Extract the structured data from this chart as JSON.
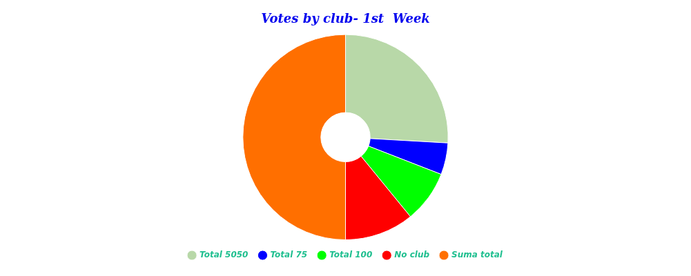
{
  "chart_data": {
    "type": "donut",
    "title": "Votes by club- 1st  Week",
    "categories": [
      "Total 5050",
      "Total 75",
      "Total 100",
      "No club",
      "Suma total"
    ],
    "values": [
      25.9,
      5.0,
      8.2,
      10.9,
      50.0
    ],
    "colors": [
      "#b8d8a8",
      "#0000ff",
      "#00ff00",
      "#ff0000",
      "#ff6f00"
    ],
    "legend": "bottom"
  }
}
